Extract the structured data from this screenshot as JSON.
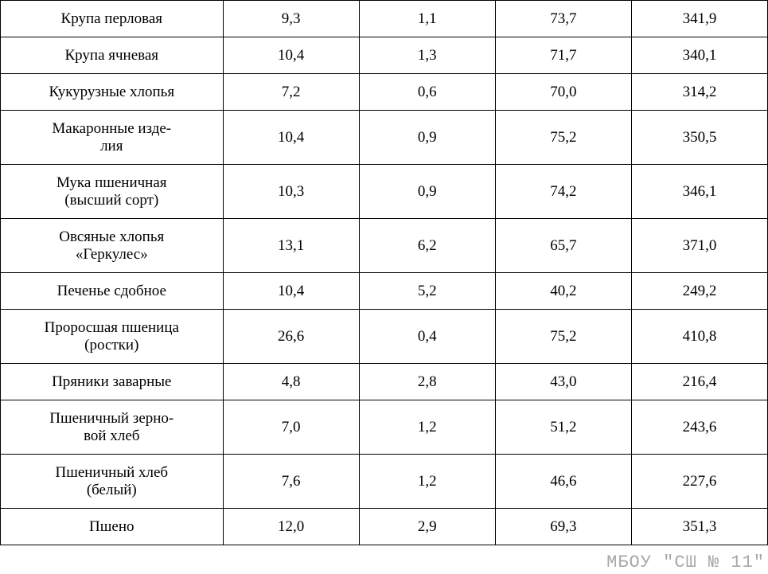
{
  "table": {
    "type": "table",
    "columns": [
      {
        "key": "name",
        "align": "center",
        "width_pct": 29
      },
      {
        "key": "col1",
        "align": "center",
        "width_pct": 17.75
      },
      {
        "key": "col2",
        "align": "center",
        "width_pct": 17.75
      },
      {
        "key": "col3",
        "align": "center",
        "width_pct": 17.75
      },
      {
        "key": "col4",
        "align": "center",
        "width_pct": 17.75
      }
    ],
    "border_color": "#000000",
    "background_color": "#ffffff",
    "text_color": "#000000",
    "font_size": 19,
    "rows": [
      {
        "name": "Крупа перловая",
        "col1": "9,3",
        "col2": "1,1",
        "col3": "73,7",
        "col4": "341,9",
        "multiline": false
      },
      {
        "name": "Крупа ячневая",
        "col1": "10,4",
        "col2": "1,3",
        "col3": "71,7",
        "col4": "340,1",
        "multiline": false
      },
      {
        "name": "Кукурузные хлопья",
        "col1": "7,2",
        "col2": "0,6",
        "col3": "70,0",
        "col4": "314,2",
        "multiline": false
      },
      {
        "name": "Макаронные изде-\nлия",
        "col1": "10,4",
        "col2": "0,9",
        "col3": "75,2",
        "col4": "350,5",
        "multiline": true
      },
      {
        "name": "Мука пшеничная\n(высший сорт)",
        "col1": "10,3",
        "col2": "0,9",
        "col3": "74,2",
        "col4": "346,1",
        "multiline": true
      },
      {
        "name": "Овсяные хлопья\n«Геркулес»",
        "col1": "13,1",
        "col2": "6,2",
        "col3": "65,7",
        "col4": "371,0",
        "multiline": true
      },
      {
        "name": "Печенье сдобное",
        "col1": "10,4",
        "col2": "5,2",
        "col3": "40,2",
        "col4": "249,2",
        "multiline": false
      },
      {
        "name": "Проросшая пшеница\n(ростки)",
        "col1": "26,6",
        "col2": "0,4",
        "col3": "75,2",
        "col4": "410,8",
        "multiline": true
      },
      {
        "name": "Пряники заварные",
        "col1": "4,8",
        "col2": "2,8",
        "col3": "43,0",
        "col4": "216,4",
        "multiline": false
      },
      {
        "name": "Пшеничный зерно-\nвой хлеб",
        "col1": "7,0",
        "col2": "1,2",
        "col3": "51,2",
        "col4": "243,6",
        "multiline": true
      },
      {
        "name": "Пшеничный хлеб\n(белый)",
        "col1": "7,6",
        "col2": "1,2",
        "col3": "46,6",
        "col4": "227,6",
        "multiline": true
      },
      {
        "name": "Пшено",
        "col1": "12,0",
        "col2": "2,9",
        "col3": "69,3",
        "col4": "351,3",
        "multiline": false
      }
    ]
  },
  "watermark": {
    "text": "МБОУ \"СШ № 11\"",
    "color": "#a8a8a8",
    "font_family": "Courier New",
    "font_size": 22
  }
}
